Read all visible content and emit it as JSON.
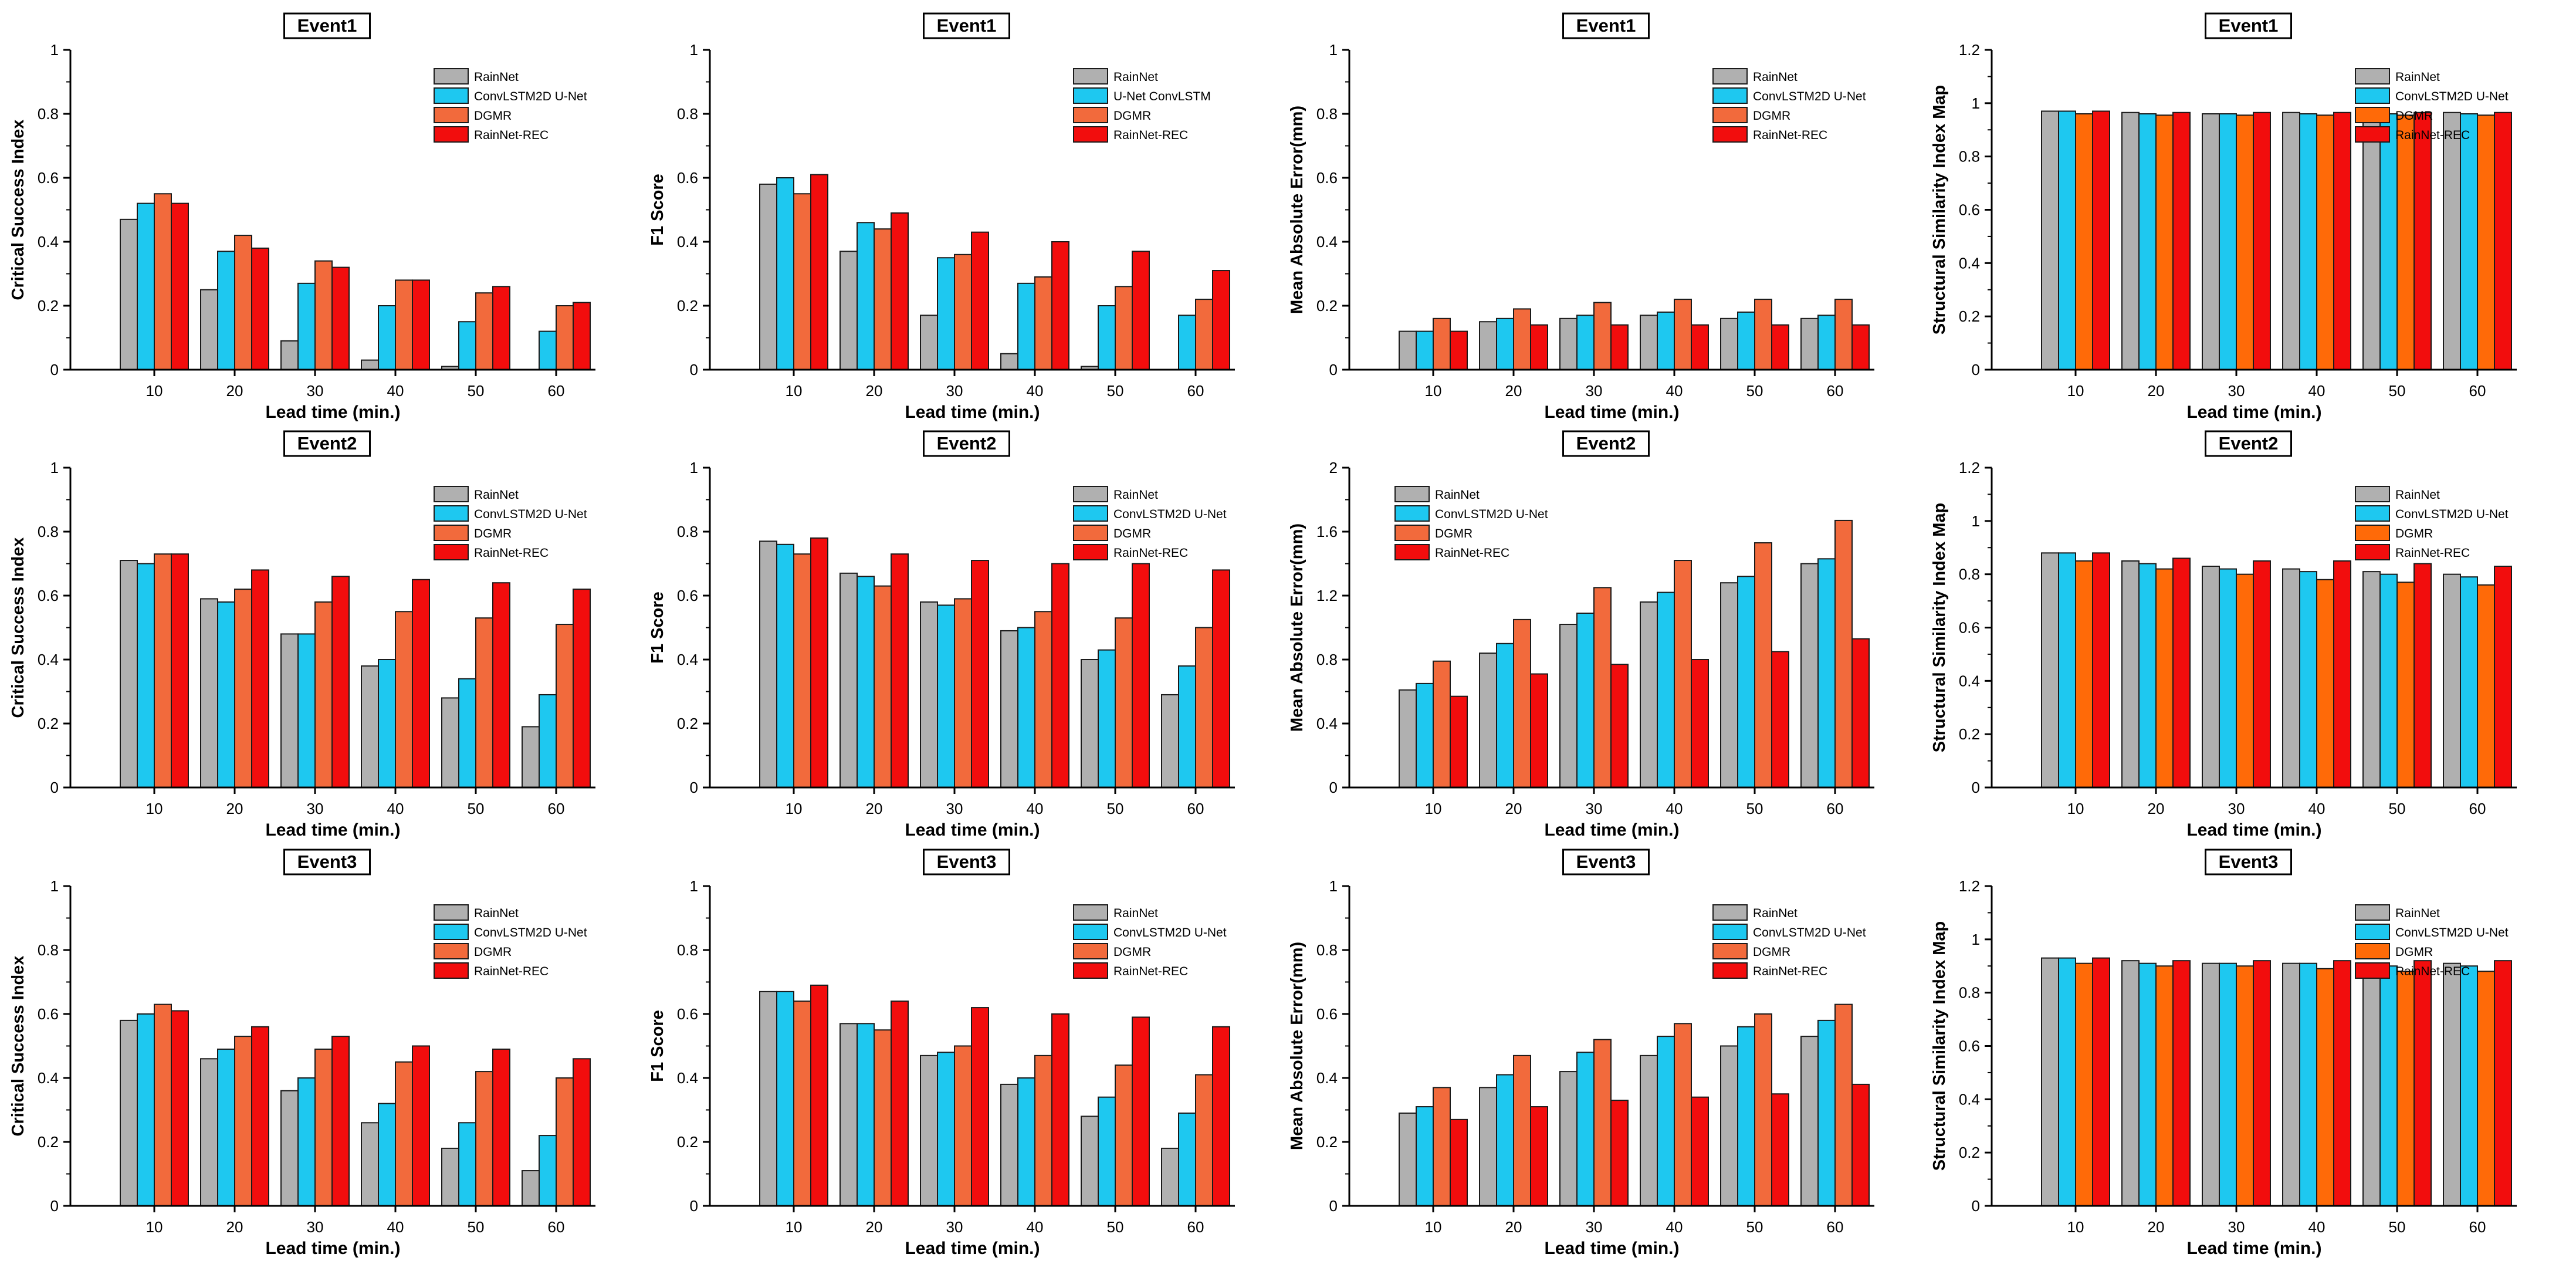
{
  "colors": {
    "RainNet": "#b0b0b0",
    "ConvLSTM2D U-Net": "#1ec8f0",
    "U-Net ConvLSTM": "#1ec8f0",
    "DGMR": "#f26a3c",
    "RainNet-REC": "#f20d0d",
    "DGMR_ssim": "#ff6a08",
    "axis": "#000000"
  },
  "chart_data": [
    {
      "type": "bar",
      "title": "Event1",
      "xlabel": "Lead time (min.)",
      "ylabel": "Critical Success Index",
      "categories": [
        "10",
        "20",
        "30",
        "40",
        "50",
        "60"
      ],
      "ylim": [
        0,
        1
      ],
      "yticks": [
        "0",
        "0.2",
        "0.4",
        "0.6",
        "0.8",
        "1"
      ],
      "legend_position": "top-right",
      "series": [
        {
          "name": "RainNet",
          "color_key": "RainNet",
          "values": [
            0.47,
            0.25,
            0.09,
            0.03,
            0.01,
            0.0
          ]
        },
        {
          "name": "ConvLSTM2D U-Net",
          "color_key": "ConvLSTM2D U-Net",
          "values": [
            0.52,
            0.37,
            0.27,
            0.2,
            0.15,
            0.12
          ]
        },
        {
          "name": "DGMR",
          "color_key": "DGMR",
          "values": [
            0.55,
            0.42,
            0.34,
            0.28,
            0.24,
            0.2
          ]
        },
        {
          "name": "RainNet-REC",
          "color_key": "RainNet-REC",
          "values": [
            0.52,
            0.38,
            0.32,
            0.28,
            0.26,
            0.21
          ]
        }
      ]
    },
    {
      "type": "bar",
      "title": "Event1",
      "xlabel": "Lead time (min.)",
      "ylabel": "F1 Score",
      "categories": [
        "10",
        "20",
        "30",
        "40",
        "50",
        "60"
      ],
      "ylim": [
        0,
        1
      ],
      "yticks": [
        "0",
        "0.2",
        "0.4",
        "0.6",
        "0.8",
        "1"
      ],
      "legend_position": "top-right",
      "series": [
        {
          "name": "RainNet",
          "color_key": "RainNet",
          "values": [
            0.58,
            0.37,
            0.17,
            0.05,
            0.01,
            0.0
          ]
        },
        {
          "name": "U-Net ConvLSTM",
          "color_key": "U-Net ConvLSTM",
          "values": [
            0.6,
            0.46,
            0.35,
            0.27,
            0.2,
            0.17
          ]
        },
        {
          "name": "DGMR",
          "color_key": "DGMR",
          "values": [
            0.55,
            0.44,
            0.36,
            0.29,
            0.26,
            0.22
          ]
        },
        {
          "name": "RainNet-REC",
          "color_key": "RainNet-REC",
          "values": [
            0.61,
            0.49,
            0.43,
            0.4,
            0.37,
            0.31
          ]
        }
      ]
    },
    {
      "type": "bar",
      "title": "Event1",
      "xlabel": "Lead time (min.)",
      "ylabel": "Mean Absolute Error(mm)",
      "categories": [
        "10",
        "20",
        "30",
        "40",
        "50",
        "60"
      ],
      "ylim": [
        0,
        1
      ],
      "yticks": [
        "0",
        "0.2",
        "0.4",
        "0.6",
        "0.8",
        "1"
      ],
      "legend_position": "top-right",
      "series": [
        {
          "name": "RainNet",
          "color_key": "RainNet",
          "values": [
            0.12,
            0.15,
            0.16,
            0.17,
            0.16,
            0.16
          ]
        },
        {
          "name": "ConvLSTM2D U-Net",
          "color_key": "ConvLSTM2D U-Net",
          "values": [
            0.12,
            0.16,
            0.17,
            0.18,
            0.18,
            0.17
          ]
        },
        {
          "name": "DGMR",
          "color_key": "DGMR",
          "values": [
            0.16,
            0.19,
            0.21,
            0.22,
            0.22,
            0.22
          ]
        },
        {
          "name": "RainNet-REC",
          "color_key": "RainNet-REC",
          "values": [
            0.12,
            0.14,
            0.14,
            0.14,
            0.14,
            0.14
          ]
        }
      ]
    },
    {
      "type": "bar",
      "title": "Event1",
      "xlabel": "Lead time (min.)",
      "ylabel": "Structural Similarity Index Map",
      "categories": [
        "10",
        "20",
        "30",
        "40",
        "50",
        "60"
      ],
      "ylim": [
        0,
        1.2
      ],
      "yticks": [
        "0",
        "0.2",
        "0.4",
        "0.6",
        "0.8",
        "1",
        "1.2"
      ],
      "legend_position": "top-right",
      "series": [
        {
          "name": "RainNet",
          "color_key": "RainNet",
          "values": [
            0.97,
            0.965,
            0.96,
            0.965,
            0.965,
            0.965
          ]
        },
        {
          "name": "ConvLSTM2D U-Net",
          "color_key": "ConvLSTM2D U-Net",
          "values": [
            0.97,
            0.96,
            0.96,
            0.96,
            0.96,
            0.96
          ]
        },
        {
          "name": "DGMR",
          "color_key": "DGMR_ssim",
          "values": [
            0.96,
            0.955,
            0.955,
            0.955,
            0.955,
            0.955
          ]
        },
        {
          "name": "RainNet-REC",
          "color_key": "RainNet-REC",
          "values": [
            0.97,
            0.965,
            0.965,
            0.965,
            0.965,
            0.965
          ]
        }
      ]
    },
    {
      "type": "bar",
      "title": "Event2",
      "xlabel": "Lead time (min.)",
      "ylabel": "Critical Success Index",
      "categories": [
        "10",
        "20",
        "30",
        "40",
        "50",
        "60"
      ],
      "ylim": [
        0,
        1
      ],
      "yticks": [
        "0",
        "0.2",
        "0.4",
        "0.6",
        "0.8",
        "1"
      ],
      "legend_position": "top-right",
      "series": [
        {
          "name": "RainNet",
          "color_key": "RainNet",
          "values": [
            0.71,
            0.59,
            0.48,
            0.38,
            0.28,
            0.19
          ]
        },
        {
          "name": "ConvLSTM2D U-Net",
          "color_key": "ConvLSTM2D U-Net",
          "values": [
            0.7,
            0.58,
            0.48,
            0.4,
            0.34,
            0.29
          ]
        },
        {
          "name": "DGMR",
          "color_key": "DGMR",
          "values": [
            0.73,
            0.62,
            0.58,
            0.55,
            0.53,
            0.51
          ]
        },
        {
          "name": "RainNet-REC",
          "color_key": "RainNet-REC",
          "values": [
            0.73,
            0.68,
            0.66,
            0.65,
            0.64,
            0.62
          ]
        }
      ]
    },
    {
      "type": "bar",
      "title": "Event2",
      "xlabel": "Lead time (min.)",
      "ylabel": "F1 Score",
      "categories": [
        "10",
        "20",
        "30",
        "40",
        "50",
        "60"
      ],
      "ylim": [
        0,
        1
      ],
      "yticks": [
        "0",
        "0.2",
        "0.4",
        "0.6",
        "0.8",
        "1"
      ],
      "legend_position": "top-right",
      "series": [
        {
          "name": "RainNet",
          "color_key": "RainNet",
          "values": [
            0.77,
            0.67,
            0.58,
            0.49,
            0.4,
            0.29
          ]
        },
        {
          "name": "ConvLSTM2D U-Net",
          "color_key": "ConvLSTM2D U-Net",
          "values": [
            0.76,
            0.66,
            0.57,
            0.5,
            0.43,
            0.38
          ]
        },
        {
          "name": "DGMR",
          "color_key": "DGMR",
          "values": [
            0.73,
            0.63,
            0.59,
            0.55,
            0.53,
            0.5
          ]
        },
        {
          "name": "RainNet-REC",
          "color_key": "RainNet-REC",
          "values": [
            0.78,
            0.73,
            0.71,
            0.7,
            0.7,
            0.68
          ]
        }
      ]
    },
    {
      "type": "bar",
      "title": "Event2",
      "xlabel": "Lead time (min.)",
      "ylabel": "Mean Absolute Error(mm)",
      "categories": [
        "10",
        "20",
        "30",
        "40",
        "50",
        "60"
      ],
      "ylim": [
        0,
        2
      ],
      "yticks": [
        "0",
        "0.4",
        "0.8",
        "1.2",
        "1.6",
        "2"
      ],
      "legend_position": "top-left",
      "series": [
        {
          "name": "RainNet",
          "color_key": "RainNet",
          "values": [
            0.61,
            0.84,
            1.02,
            1.16,
            1.28,
            1.4
          ]
        },
        {
          "name": "ConvLSTM2D U-Net",
          "color_key": "ConvLSTM2D U-Net",
          "values": [
            0.65,
            0.9,
            1.09,
            1.22,
            1.32,
            1.43
          ]
        },
        {
          "name": "DGMR",
          "color_key": "DGMR",
          "values": [
            0.79,
            1.05,
            1.25,
            1.42,
            1.53,
            1.67
          ]
        },
        {
          "name": "RainNet-REC",
          "color_key": "RainNet-REC",
          "values": [
            0.57,
            0.71,
            0.77,
            0.8,
            0.85,
            0.93
          ]
        }
      ]
    },
    {
      "type": "bar",
      "title": "Event2",
      "xlabel": "Lead time (min.)",
      "ylabel": "Structural Similarity Index Map",
      "categories": [
        "10",
        "20",
        "30",
        "40",
        "50",
        "60"
      ],
      "ylim": [
        0,
        1.2
      ],
      "yticks": [
        "0",
        "0.2",
        "0.4",
        "0.6",
        "0.8",
        "1",
        "1.2"
      ],
      "legend_position": "top-right",
      "series": [
        {
          "name": "RainNet",
          "color_key": "RainNet",
          "values": [
            0.88,
            0.85,
            0.83,
            0.82,
            0.81,
            0.8
          ]
        },
        {
          "name": "ConvLSTM2D U-Net",
          "color_key": "ConvLSTM2D U-Net",
          "values": [
            0.88,
            0.84,
            0.82,
            0.81,
            0.8,
            0.79
          ]
        },
        {
          "name": "DGMR",
          "color_key": "DGMR_ssim",
          "values": [
            0.85,
            0.82,
            0.8,
            0.78,
            0.77,
            0.76
          ]
        },
        {
          "name": "RainNet-REC",
          "color_key": "RainNet-REC",
          "values": [
            0.88,
            0.86,
            0.85,
            0.85,
            0.84,
            0.83
          ]
        }
      ]
    },
    {
      "type": "bar",
      "title": "Event3",
      "xlabel": "Lead time (min.)",
      "ylabel": "Critical Success Index",
      "categories": [
        "10",
        "20",
        "30",
        "40",
        "50",
        "60"
      ],
      "ylim": [
        0,
        1
      ],
      "yticks": [
        "0",
        "0.2",
        "0.4",
        "0.6",
        "0.8",
        "1"
      ],
      "legend_position": "top-right",
      "series": [
        {
          "name": "RainNet",
          "color_key": "RainNet",
          "values": [
            0.58,
            0.46,
            0.36,
            0.26,
            0.18,
            0.11
          ]
        },
        {
          "name": "ConvLSTM2D U-Net",
          "color_key": "ConvLSTM2D U-Net",
          "values": [
            0.6,
            0.49,
            0.4,
            0.32,
            0.26,
            0.22
          ]
        },
        {
          "name": "DGMR",
          "color_key": "DGMR",
          "values": [
            0.63,
            0.53,
            0.49,
            0.45,
            0.42,
            0.4
          ]
        },
        {
          "name": "RainNet-REC",
          "color_key": "RainNet-REC",
          "values": [
            0.61,
            0.56,
            0.53,
            0.5,
            0.49,
            0.46
          ]
        }
      ]
    },
    {
      "type": "bar",
      "title": "Event3",
      "xlabel": "Lead time (min.)",
      "ylabel": "F1 Score",
      "categories": [
        "10",
        "20",
        "30",
        "40",
        "50",
        "60"
      ],
      "ylim": [
        0,
        1
      ],
      "yticks": [
        "0",
        "0.2",
        "0.4",
        "0.6",
        "0.8",
        "1"
      ],
      "legend_position": "top-right",
      "series": [
        {
          "name": "RainNet",
          "color_key": "RainNet",
          "values": [
            0.67,
            0.57,
            0.47,
            0.38,
            0.28,
            0.18
          ]
        },
        {
          "name": "ConvLSTM2D U-Net",
          "color_key": "ConvLSTM2D U-Net",
          "values": [
            0.67,
            0.57,
            0.48,
            0.4,
            0.34,
            0.29
          ]
        },
        {
          "name": "DGMR",
          "color_key": "DGMR",
          "values": [
            0.64,
            0.55,
            0.5,
            0.47,
            0.44,
            0.41
          ]
        },
        {
          "name": "RainNet-REC",
          "color_key": "RainNet-REC",
          "values": [
            0.69,
            0.64,
            0.62,
            0.6,
            0.59,
            0.56
          ]
        }
      ]
    },
    {
      "type": "bar",
      "title": "Event3",
      "xlabel": "Lead time (min.)",
      "ylabel": "Mean Absolute Error(mm)",
      "categories": [
        "10",
        "20",
        "30",
        "40",
        "50",
        "60"
      ],
      "ylim": [
        0,
        1
      ],
      "yticks": [
        "0",
        "0.2",
        "0.4",
        "0.6",
        "0.8",
        "1"
      ],
      "legend_position": "top-right",
      "series": [
        {
          "name": "RainNet",
          "color_key": "RainNet",
          "values": [
            0.29,
            0.37,
            0.42,
            0.47,
            0.5,
            0.53
          ]
        },
        {
          "name": "ConvLSTM2D U-Net",
          "color_key": "ConvLSTM2D U-Net",
          "values": [
            0.31,
            0.41,
            0.48,
            0.53,
            0.56,
            0.58
          ]
        },
        {
          "name": "DGMR",
          "color_key": "DGMR",
          "values": [
            0.37,
            0.47,
            0.52,
            0.57,
            0.6,
            0.63
          ]
        },
        {
          "name": "RainNet-REC",
          "color_key": "RainNet-REC",
          "values": [
            0.27,
            0.31,
            0.33,
            0.34,
            0.35,
            0.38
          ]
        }
      ]
    },
    {
      "type": "bar",
      "title": "Event3",
      "xlabel": "Lead time (min.)",
      "ylabel": "Structural Similarity Index Map",
      "categories": [
        "10",
        "20",
        "30",
        "40",
        "50",
        "60"
      ],
      "ylim": [
        0,
        1.2
      ],
      "yticks": [
        "0",
        "0.2",
        "0.4",
        "0.6",
        "0.8",
        "1",
        "1.2"
      ],
      "legend_position": "top-right",
      "series": [
        {
          "name": "RainNet",
          "color_key": "RainNet",
          "values": [
            0.93,
            0.92,
            0.91,
            0.91,
            0.91,
            0.91
          ]
        },
        {
          "name": "ConvLSTM2D U-Net",
          "color_key": "ConvLSTM2D U-Net",
          "values": [
            0.93,
            0.91,
            0.91,
            0.91,
            0.9,
            0.9
          ]
        },
        {
          "name": "DGMR",
          "color_key": "DGMR_ssim",
          "values": [
            0.91,
            0.9,
            0.9,
            0.89,
            0.88,
            0.88
          ]
        },
        {
          "name": "RainNet-REC",
          "color_key": "RainNet-REC",
          "values": [
            0.93,
            0.92,
            0.92,
            0.92,
            0.92,
            0.92
          ]
        }
      ]
    }
  ]
}
